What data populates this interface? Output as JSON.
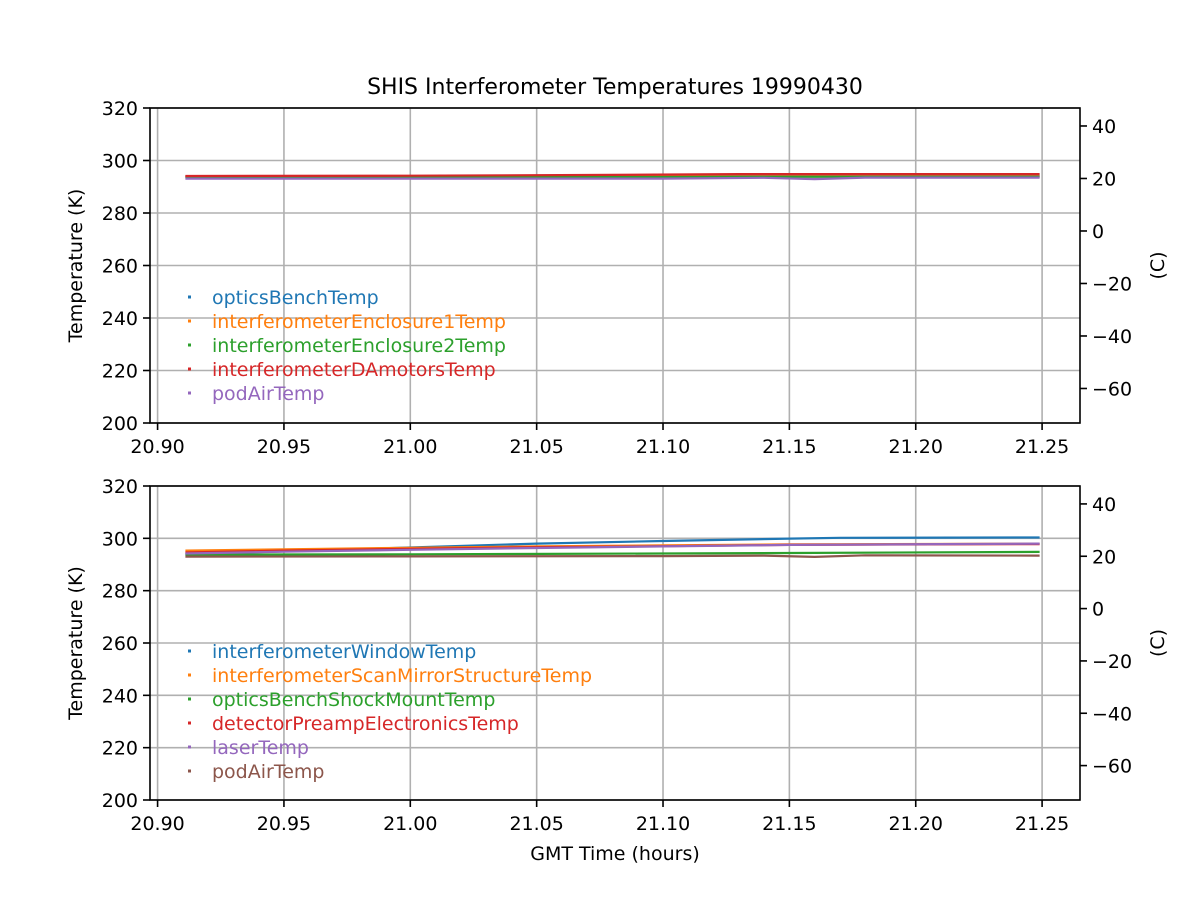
{
  "figure": {
    "title": "SHIS Interferometer Temperatures 19990430"
  },
  "chart_data": [
    {
      "type": "line",
      "title": "SHIS Interferometer Temperatures 19990430",
      "xlabel": "",
      "ylabel": "Temperature (K)",
      "y2label": "(C)",
      "xlim": [
        20.897,
        21.265
      ],
      "ylim": [
        200,
        320
      ],
      "y2lim": [
        -73.15,
        46.85
      ],
      "xticks": [
        "20.90",
        "20.95",
        "21.00",
        "21.05",
        "21.10",
        "21.15",
        "21.20",
        "21.25"
      ],
      "xtick_values": [
        20.9,
        20.95,
        21.0,
        21.05,
        21.1,
        21.15,
        21.2,
        21.25
      ],
      "yticks": [
        "200",
        "220",
        "240",
        "260",
        "280",
        "300",
        "320"
      ],
      "ytick_values": [
        200,
        220,
        240,
        260,
        280,
        300,
        320
      ],
      "y2ticks": [
        "−60",
        "−40",
        "−20",
        "0",
        "20",
        "40"
      ],
      "y2tick_values": [
        -60,
        -40,
        -20,
        0,
        20,
        40
      ],
      "grid": true,
      "legend_position": "center-left",
      "series": [
        {
          "name": "opticsBenchTemp",
          "color": "#1f77b4",
          "x": [
            20.911,
            21.0,
            21.1,
            21.15,
            21.249
          ],
          "y": [
            294.0,
            294.0,
            294.1,
            294.2,
            294.2
          ]
        },
        {
          "name": "interferometerEnclosure1Temp",
          "color": "#ff7f0e",
          "x": [
            20.911,
            21.0,
            21.1,
            21.15,
            21.249
          ],
          "y": [
            293.8,
            293.8,
            293.9,
            294.0,
            294.0
          ]
        },
        {
          "name": "interferometerEnclosure2Temp",
          "color": "#2ca02c",
          "x": [
            20.911,
            21.0,
            21.1,
            21.15,
            21.249
          ],
          "y": [
            293.6,
            293.6,
            293.7,
            293.8,
            293.8
          ]
        },
        {
          "name": "interferometerDAmotorsTemp",
          "color": "#d62728",
          "x": [
            20.911,
            21.0,
            21.08,
            21.13,
            21.249
          ],
          "y": [
            294.1,
            294.2,
            294.5,
            294.8,
            294.8
          ]
        },
        {
          "name": "podAirTemp",
          "color": "#9467bd",
          "x": [
            20.911,
            21.0,
            21.1,
            21.14,
            21.16,
            21.18,
            21.249
          ],
          "y": [
            293.1,
            293.1,
            293.1,
            293.4,
            292.9,
            293.5,
            293.5
          ]
        }
      ]
    },
    {
      "type": "line",
      "title": "",
      "xlabel": "GMT Time (hours)",
      "ylabel": "Temperature (K)",
      "y2label": "(C)",
      "xlim": [
        20.897,
        21.265
      ],
      "ylim": [
        200,
        320
      ],
      "y2lim": [
        -73.15,
        46.85
      ],
      "xticks": [
        "20.90",
        "20.95",
        "21.00",
        "21.05",
        "21.10",
        "21.15",
        "21.20",
        "21.25"
      ],
      "xtick_values": [
        20.9,
        20.95,
        21.0,
        21.05,
        21.1,
        21.15,
        21.2,
        21.25
      ],
      "yticks": [
        "200",
        "220",
        "240",
        "260",
        "280",
        "300",
        "320"
      ],
      "ytick_values": [
        200,
        220,
        240,
        260,
        280,
        300,
        320
      ],
      "y2ticks": [
        "−60",
        "−40",
        "−20",
        "0",
        "20",
        "40"
      ],
      "y2tick_values": [
        -60,
        -40,
        -20,
        0,
        20,
        40
      ],
      "grid": true,
      "legend_position": "center-left",
      "series": [
        {
          "name": "interferometerWindowTemp",
          "color": "#1f77b4",
          "x": [
            20.911,
            20.95,
            21.0,
            21.05,
            21.1,
            21.15,
            21.17,
            21.249
          ],
          "y": [
            294.0,
            295.0,
            296.5,
            298.0,
            299.0,
            299.9,
            300.2,
            300.3
          ]
        },
        {
          "name": "interferometerScanMirrorStructureTemp",
          "color": "#ff7f0e",
          "x": [
            20.911,
            20.95,
            21.0,
            21.05,
            21.1,
            21.15,
            21.249
          ],
          "y": [
            295.3,
            295.8,
            296.4,
            296.9,
            297.3,
            297.7,
            298.0
          ]
        },
        {
          "name": "opticsBenchShockMountTemp",
          "color": "#2ca02c",
          "x": [
            20.911,
            21.0,
            21.1,
            21.15,
            21.249
          ],
          "y": [
            293.8,
            293.9,
            294.2,
            294.4,
            294.8
          ]
        },
        {
          "name": "detectorPreampElectronicsTemp",
          "color": "#d62728",
          "x": [
            20.911,
            20.95,
            21.0,
            21.05,
            21.1,
            21.15,
            21.249
          ],
          "y": [
            294.6,
            295.3,
            296.0,
            296.6,
            297.0,
            297.5,
            297.8
          ]
        },
        {
          "name": "laserTemp",
          "color": "#9467bd",
          "x": [
            20.911,
            20.95,
            21.0,
            21.05,
            21.1,
            21.15,
            21.249
          ],
          "y": [
            294.2,
            294.9,
            295.6,
            296.3,
            296.9,
            297.5,
            298.0
          ]
        },
        {
          "name": "podAirTemp",
          "color": "#8c564b",
          "x": [
            20.911,
            21.0,
            21.1,
            21.14,
            21.16,
            21.18,
            21.249
          ],
          "y": [
            293.0,
            293.1,
            293.2,
            293.4,
            292.9,
            293.5,
            293.4
          ]
        }
      ]
    }
  ]
}
